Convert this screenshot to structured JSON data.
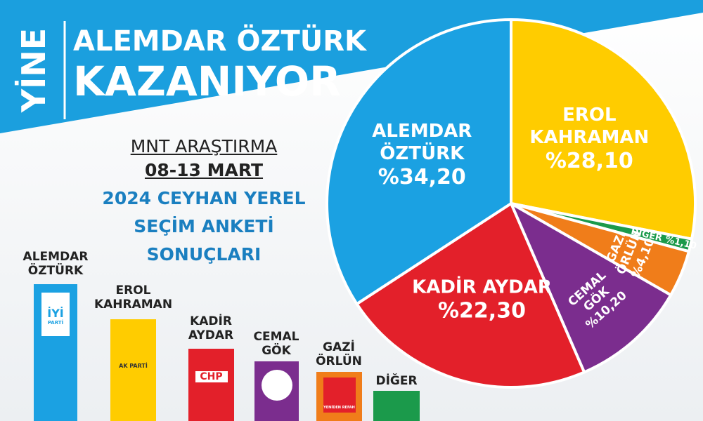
{
  "header": {
    "tag": "YİNE",
    "line1": "ALEMDAR ÖZTÜRK",
    "line2": "KAZANIYOR"
  },
  "survey": {
    "company": "MNT ARAŞTIRMA",
    "dates": "08-13 MART",
    "line1": "2024 CEYHAN YEREL",
    "line2": "SEÇİM ANKETİ",
    "line3": "SONUÇLARI"
  },
  "party_logos": {
    "iyi": "İYİ",
    "iyi_sub": "PARTİ",
    "ak": "AK PARTİ",
    "chp": "CHP",
    "yrp": "YENİDEN REFAH"
  },
  "chart_data": {
    "type": "pie",
    "categories": [
      "EROL KAHRAMAN",
      "DİĞER",
      "GAZİ ÖRLÜN",
      "CEMAL GÖK",
      "KADİR AYDAR",
      "ALEMDAR ÖZTÜRK"
    ],
    "values": [
      28.1,
      1.1,
      4.1,
      10.2,
      22.3,
      34.2
    ],
    "value_labels": [
      "%28,10",
      "%1,10",
      "%4,10",
      "%10,20",
      "%22,30",
      "%34,20"
    ],
    "colors": [
      "#ffcc00",
      "#1b9a4b",
      "#f07d1a",
      "#7b2d8e",
      "#e3202a",
      "#1ba1e2"
    ]
  }
}
